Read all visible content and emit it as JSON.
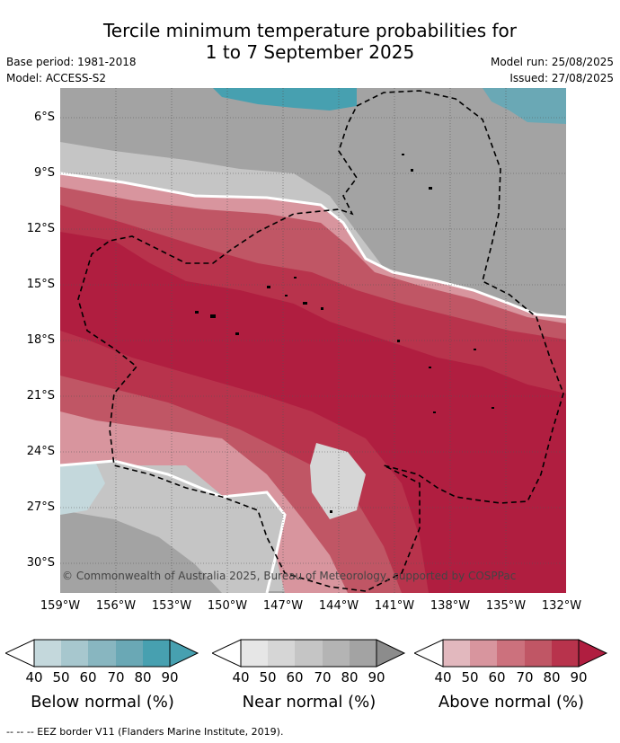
{
  "title_line1": "Tercile minimum temperature probabilities for",
  "title_line2": "1 to 7 September 2025",
  "base_period": "Base period: 1981-2018",
  "model": "Model: ACCESS-S2",
  "model_run": "Model run: 25/08/2025",
  "issued": "Issued: 27/08/2025",
  "lat_ticks": [
    "6°S",
    "9°S",
    "12°S",
    "15°S",
    "18°S",
    "21°S",
    "24°S",
    "27°S",
    "30°S"
  ],
  "lon_ticks": [
    "159°W",
    "156°W",
    "153°W",
    "150°W",
    "147°W",
    "144°W",
    "141°W",
    "138°W",
    "135°W",
    "132°W"
  ],
  "copyright": "© Commonwealth of Australia 2025, Bureau of Meteorology, supported by COSPPac",
  "legend": {
    "tick_values": [
      "40",
      "50",
      "60",
      "70",
      "80",
      "90"
    ],
    "below": {
      "label": "Below normal (%)",
      "colors": [
        "#c4d8dc",
        "#a7c7ce",
        "#88b6c0",
        "#6aa8b5",
        "#47a0b0"
      ]
    },
    "near": {
      "label": "Near normal (%)",
      "colors": [
        "#e6e6e6",
        "#d6d6d6",
        "#c5c5c5",
        "#b4b4b4",
        "#a3a3a3",
        "#8c8c8c"
      ]
    },
    "above": {
      "label": "Above normal (%)",
      "colors": [
        "#e2b8be",
        "#d8959e",
        "#cc717d",
        "#c05665",
        "#b8334c",
        "#b01e40"
      ]
    }
  },
  "footer": "--  --  -- EEZ border V11 (Flanders Marine Institute, 2019)."
}
